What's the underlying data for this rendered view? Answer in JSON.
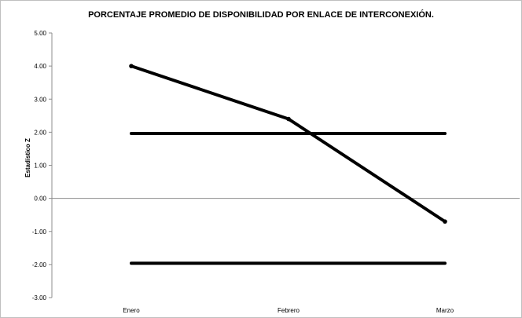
{
  "chart_data": {
    "type": "line",
    "title": "PORCENTAJE PROMEDIO DE DISPONIBILIDAD POR ENLACE DE INTERCONEXIÓN.",
    "xlabel": "",
    "ylabel": "Estadístico Z",
    "categories": [
      "Enero",
      "Febrero",
      "Marzo"
    ],
    "ylim": [
      -3,
      5
    ],
    "yticks": [
      "5.00",
      "4.00",
      "3.00",
      "2.00",
      "1.00",
      "0.00",
      "-1.00",
      "-2.00",
      "-3.00"
    ],
    "grid": false,
    "legend": "none",
    "series": [
      {
        "values": [
          4.0,
          2.4,
          -0.7
        ],
        "color": "#000000"
      },
      {
        "values": [
          1.96,
          1.96,
          1.96
        ],
        "color": "#000000"
      },
      {
        "values": [
          -1.96,
          -1.96,
          -1.96
        ],
        "color": "#000000"
      }
    ]
  }
}
